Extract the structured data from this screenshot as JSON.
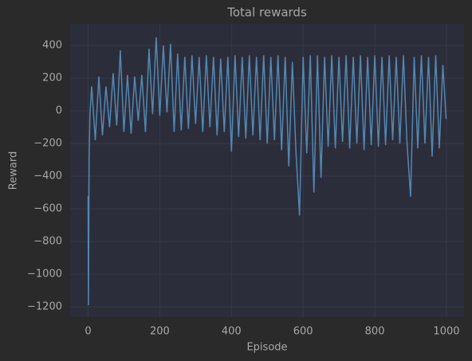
{
  "chart_data": {
    "type": "line",
    "title": "Total rewards",
    "x_label": "Episode",
    "y_label": "Reward",
    "x": [
      0,
      1,
      3,
      5,
      10,
      20,
      30,
      40,
      50,
      60,
      70,
      80,
      90,
      100,
      110,
      120,
      130,
      140,
      150,
      160,
      170,
      180,
      190,
      200,
      210,
      220,
      230,
      240,
      250,
      260,
      270,
      280,
      290,
      300,
      310,
      320,
      330,
      340,
      350,
      360,
      370,
      380,
      390,
      400,
      410,
      420,
      430,
      440,
      450,
      460,
      470,
      480,
      490,
      500,
      510,
      520,
      530,
      540,
      550,
      560,
      570,
      580,
      590,
      600,
      610,
      620,
      630,
      640,
      650,
      660,
      670,
      680,
      690,
      700,
      710,
      720,
      730,
      740,
      750,
      760,
      770,
      780,
      790,
      800,
      810,
      820,
      830,
      840,
      850,
      860,
      870,
      880,
      890,
      900,
      910,
      920,
      930,
      940,
      950,
      960,
      970,
      980,
      990,
      999
    ],
    "series": [
      {
        "name": "Reward",
        "color": "#5288b2",
        "values": [
          -520,
          -1190,
          -300,
          -30,
          150,
          -180,
          210,
          -150,
          150,
          -100,
          230,
          -90,
          370,
          -130,
          220,
          -140,
          210,
          -60,
          220,
          -130,
          380,
          -20,
          450,
          -30,
          400,
          -10,
          410,
          -130,
          350,
          -120,
          330,
          -110,
          340,
          -80,
          330,
          -130,
          340,
          -100,
          330,
          -150,
          320,
          -130,
          330,
          -250,
          340,
          -160,
          330,
          -170,
          340,
          -150,
          330,
          -180,
          340,
          -200,
          330,
          -180,
          340,
          -240,
          330,
          -340,
          300,
          -250,
          -640,
          330,
          -260,
          340,
          -500,
          340,
          -410,
          330,
          -220,
          340,
          -230,
          330,
          -190,
          340,
          -230,
          330,
          -200,
          340,
          -240,
          330,
          -210,
          340,
          -220,
          330,
          -210,
          340,
          -180,
          330,
          -200,
          340,
          -200,
          -525,
          330,
          -230,
          340,
          -200,
          330,
          -280,
          340,
          -230,
          280,
          -50
        ]
      }
    ],
    "xlim": [
      -50,
      1049
    ],
    "ylim": [
      -1263,
      532
    ],
    "xticks": [
      0,
      200,
      400,
      600,
      800,
      1000
    ],
    "yticks": [
      {
        "value": -1200,
        "label": "−1200"
      },
      {
        "value": -1000,
        "label": "−1000"
      },
      {
        "value": -800,
        "label": "−800"
      },
      {
        "value": -600,
        "label": "−600"
      },
      {
        "value": -400,
        "label": "−400"
      },
      {
        "value": -200,
        "label": "−200"
      },
      0,
      200,
      400
    ],
    "grid": true
  }
}
